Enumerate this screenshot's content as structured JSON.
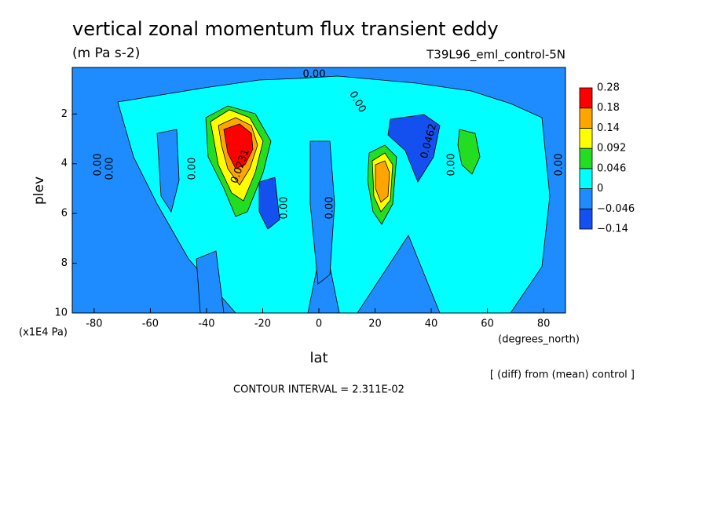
{
  "chart_data": {
    "type": "contour",
    "title": "vertical zonal momentum flux transient eddy",
    "subtitle": "(m Pa s-2)",
    "dataset": "T39L96_eml_control-5N",
    "x_label": "lat",
    "x_units": "(degrees_north)",
    "y_label": "plev",
    "y_units": "(x1E4 Pa)",
    "xlim": [
      -87.8,
      87.8
    ],
    "xticks": [
      -80,
      -60,
      -40,
      -20,
      0,
      20,
      40,
      60,
      80
    ],
    "ylim": [
      10,
      0.13
    ],
    "yticks": [
      2,
      4,
      6,
      8,
      10
    ],
    "levels": [
      {
        "value": -0.14,
        "label": "−0.14"
      },
      {
        "value": -0.046,
        "label": "−0.046"
      },
      0,
      0.046,
      0.092,
      0.14,
      0.18,
      0.28
    ],
    "colors": [
      "#1450f0",
      "#1e8cff",
      "#00ffff",
      "#22dd22",
      "#ffff00",
      "#ffa500",
      "#ff0000"
    ],
    "contour_labels": [
      "0.00",
      "0.00",
      "0.00",
      "0.00",
      "0.00",
      "0.00",
      "0.00",
      "0.00",
      "0.00",
      "0.0462",
      "0.0231"
    ],
    "note": "[ (diff) from (mean) control ]",
    "contour_interval": "CONTOUR INTERVAL = 2.311E-02"
  }
}
